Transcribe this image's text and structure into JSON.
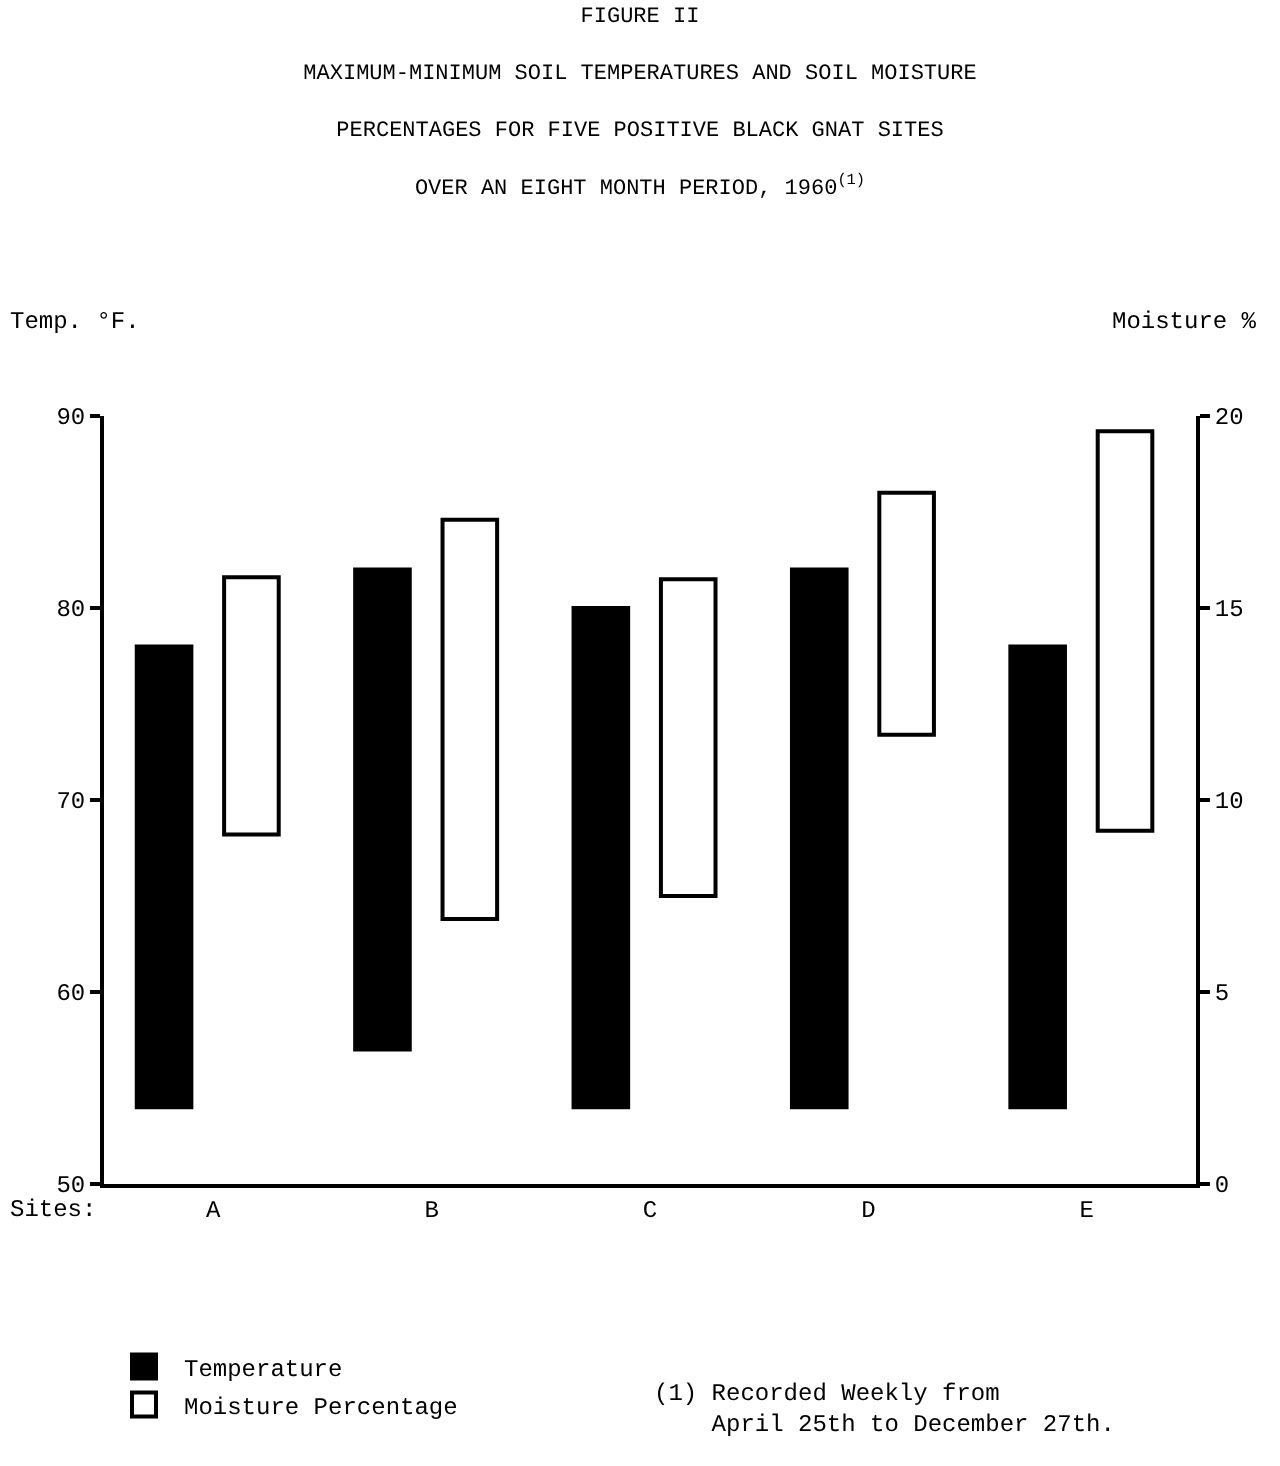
{
  "chart_data": {
    "type": "bar",
    "title": "FIGURE II",
    "subtitle": "MAXIMUM-MINIMUM SOIL TEMPERATURES AND SOIL MOISTURE\nPERCENTAGES FOR FIVE POSITIVE BLACK GNAT SITES\nOVER AN EIGHT MONTH PERIOD, 1960$^{(1)}$",
    "xlabel": "Sites:",
    "ylabel": "Temp. °F.",
    "y2label": "Moisture %",
    "categories": [
      "A",
      "B",
      "C",
      "D",
      "E"
    ],
    "series": [
      {
        "name": "Temperature",
        "color": "#000000",
        "values": [
          24,
          25,
          26,
          28,
          24
        ],
        "base": [
          54,
          57,
          54,
          54,
          54
        ]
      },
      {
        "name": "Moisture Percentage",
        "color": "#ffffff",
        "axis": "y2",
        "values": [
          6.7,
          10.4,
          8.25,
          6.3,
          10.4
        ],
        "base": [
          9.1,
          6.9,
          7.5,
          11.7,
          9.2
        ]
      }
    ],
    "ylim": [
      50,
      90
    ],
    "yticks": [
      50,
      60,
      70,
      80,
      90
    ],
    "y2lim": [
      0,
      20
    ],
    "y2ticks": [
      0,
      5,
      10,
      15,
      20
    ],
    "legend": "bottom left",
    "grid": false,
    "annotations": [
      "(1) Recorded Weekly from\n    April 25th to December 27th."
    ]
  }
}
